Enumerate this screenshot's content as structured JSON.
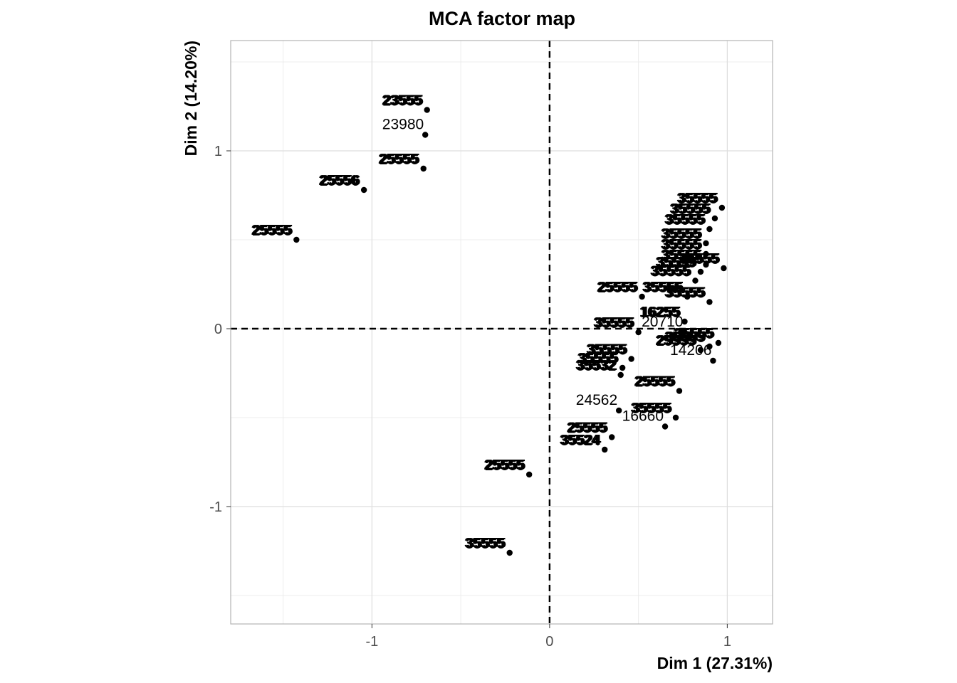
{
  "chart_data": {
    "type": "scatter",
    "title": "MCA factor map",
    "xlabel": "Dim 1 (27.31%)",
    "ylabel": "Dim 2 (14.20%)",
    "xlim": [
      -1.795,
      1.255
    ],
    "ylim": [
      -1.66,
      1.62
    ],
    "xticks": [
      -1,
      0,
      1
    ],
    "yticks": [
      -1,
      0,
      1
    ],
    "xtick_labels": [
      "-1",
      "0",
      "1"
    ],
    "ytick_labels": [
      "-1",
      "0",
      "1"
    ],
    "grid": true,
    "reference_lines": {
      "x": 0,
      "y": 0,
      "style": "dashed"
    },
    "point_color": "#000000",
    "points": [
      {
        "x": -1.425,
        "y": 0.5,
        "label": "25555",
        "stacked": true
      },
      {
        "x": -1.045,
        "y": 0.78,
        "label": "25556",
        "stacked": true
      },
      {
        "x": -0.71,
        "y": 0.9,
        "label": "25555",
        "stacked": true
      },
      {
        "x": -0.7,
        "y": 1.09,
        "label": "23980",
        "stacked": false
      },
      {
        "x": -0.69,
        "y": 1.23,
        "label": "23555",
        "stacked": true
      },
      {
        "x": -0.115,
        "y": -0.82,
        "label": "25555",
        "stacked": true
      },
      {
        "x": -0.225,
        "y": -1.26,
        "label": "35555",
        "stacked": true
      },
      {
        "x": 0.52,
        "y": 0.18,
        "label": "25555",
        "stacked": true
      },
      {
        "x": 0.76,
        "y": 0.04,
        "label": "16255",
        "stacked": true
      },
      {
        "x": 0.775,
        "y": 0.18,
        "label": "35555",
        "stacked": true
      },
      {
        "x": 0.5,
        "y": -0.02,
        "label": "35555",
        "stacked": true
      },
      {
        "x": 0.76,
        "y": -0.02,
        "label": "20710",
        "stacked": false
      },
      {
        "x": 0.85,
        "y": -0.12,
        "label": "25555",
        "stacked": true
      },
      {
        "x": 0.92,
        "y": -0.18,
        "label": "14206",
        "stacked": false
      },
      {
        "x": 0.46,
        "y": -0.17,
        "label": "35555",
        "stacked": true
      },
      {
        "x": 0.41,
        "y": -0.22,
        "label": "35555",
        "stacked": true
      },
      {
        "x": 0.4,
        "y": -0.26,
        "label": "35532",
        "stacked": true
      },
      {
        "x": 0.73,
        "y": -0.35,
        "label": "25555",
        "stacked": true
      },
      {
        "x": 0.39,
        "y": -0.46,
        "label": "24562",
        "stacked": false
      },
      {
        "x": 0.71,
        "y": -0.5,
        "label": "35555",
        "stacked": true
      },
      {
        "x": 0.65,
        "y": -0.55,
        "label": "16660",
        "stacked": false
      },
      {
        "x": 0.35,
        "y": -0.61,
        "label": "25555",
        "stacked": true
      },
      {
        "x": 0.31,
        "y": -0.68,
        "label": "35524",
        "stacked": true
      },
      {
        "x": 0.93,
        "y": 0.62,
        "label": "35555",
        "stacked": true
      },
      {
        "x": 0.97,
        "y": 0.68,
        "label": "35555",
        "stacked": true
      },
      {
        "x": 0.9,
        "y": 0.56,
        "label": "35555",
        "stacked": true
      },
      {
        "x": 0.88,
        "y": 0.48,
        "label": "35555",
        "stacked": true
      },
      {
        "x": 0.88,
        "y": 0.42,
        "label": "35555",
        "stacked": true
      },
      {
        "x": 0.88,
        "y": 0.36,
        "label": "35555",
        "stacked": true
      },
      {
        "x": 0.85,
        "y": 0.32,
        "label": "35555",
        "stacked": true
      },
      {
        "x": 0.82,
        "y": 0.27,
        "label": "35555",
        "stacked": true
      },
      {
        "x": 0.98,
        "y": 0.34,
        "label": "35555",
        "stacked": true
      },
      {
        "x": 0.9,
        "y": 0.15,
        "label": "35555",
        "stacked": true
      },
      {
        "x": 0.95,
        "y": -0.08,
        "label": "35555",
        "stacked": true
      },
      {
        "x": 0.9,
        "y": -0.1,
        "label": "35555",
        "stacked": true
      }
    ]
  }
}
